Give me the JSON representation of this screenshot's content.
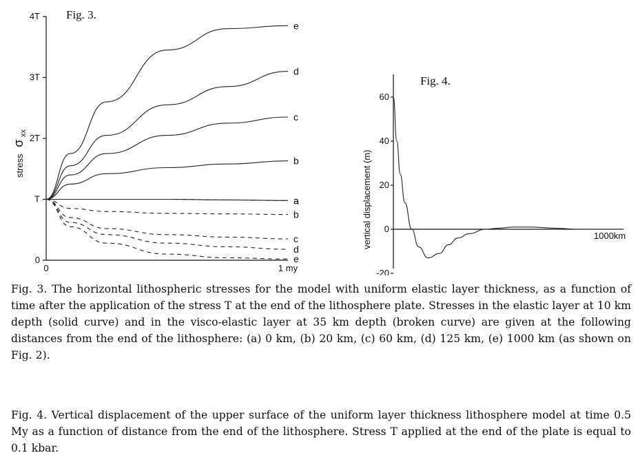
{
  "fig3": {
    "label": "Fig. 3.",
    "y_axis_label": "stress",
    "y_axis_symbol": "σ",
    "y_axis_subscript": "xx",
    "y_ticks": [
      "0",
      "T",
      "2T",
      "3T",
      "4T"
    ],
    "x_ticks": [
      "0",
      "1 my"
    ],
    "caption": "Fig. 3. The horizontal lithospheric stresses for the model with uniform elastic layer thickness, as a function of time after the application of the stress T at the end of the lithosphere plate. Stresses in the elastic layer at 10 km depth (solid curve) and in the visco-elastic layer at 35 km depth (broken curve) are given at the following distances from the end of the lithosphere: (a) 0 km, (b) 20 km, (c) 60 km, (d) 125 km, (e) 1000 km (as shown on Fig. 2)."
  },
  "fig4": {
    "label": "Fig. 4.",
    "y_axis_label": "vertical displacement (m)",
    "y_ticks": [
      "-20",
      "0",
      "20",
      "40",
      "60"
    ],
    "x_tick_end": "1000km",
    "caption": "Fig. 4. Vertical displacement of the upper surface of the uniform layer thickness lithosphere model at time 0.5 My as a function of distance from the end of the lithosphere. Stress T applied at the end of the plate is equal to 0.1 kbar."
  },
  "chart_data": [
    {
      "type": "line",
      "x_unit_note": "time after application of stress (my)",
      "xlim": [
        0,
        1
      ],
      "ylim": [
        0,
        4
      ],
      "x_ticks": [
        "0",
        "1 my"
      ],
      "y_ticks": [
        "0",
        "T",
        "2T",
        "3T",
        "4T"
      ],
      "grid": false,
      "series": [
        {
          "name": "a",
          "style": "solid",
          "x": [
            0,
            0.25,
            0.5,
            0.75,
            1
          ],
          "y": [
            1.0,
            1.0,
            1.0,
            0.99,
            0.98
          ]
        },
        {
          "name": "b",
          "style": "solid",
          "x": [
            0,
            0.1,
            0.25,
            0.5,
            0.75,
            1
          ],
          "y": [
            1.0,
            1.25,
            1.42,
            1.52,
            1.58,
            1.63
          ]
        },
        {
          "name": "c",
          "style": "solid",
          "x": [
            0,
            0.1,
            0.25,
            0.5,
            0.75,
            1
          ],
          "y": [
            1.0,
            1.4,
            1.75,
            2.05,
            2.25,
            2.35
          ]
        },
        {
          "name": "d",
          "style": "solid",
          "x": [
            0,
            0.1,
            0.25,
            0.5,
            0.75,
            1
          ],
          "y": [
            1.0,
            1.55,
            2.05,
            2.55,
            2.85,
            3.1
          ]
        },
        {
          "name": "e",
          "style": "solid",
          "x": [
            0,
            0.1,
            0.25,
            0.5,
            0.75,
            1
          ],
          "y": [
            1.0,
            1.75,
            2.6,
            3.45,
            3.8,
            3.85
          ]
        },
        {
          "name": "a",
          "style": "dashed",
          "x": [
            0,
            0.25,
            0.5,
            0.75,
            1
          ],
          "y": [
            1.0,
            1.0,
            1.0,
            0.99,
            0.98
          ]
        },
        {
          "name": "b",
          "style": "dashed",
          "x": [
            0,
            0.1,
            0.25,
            0.5,
            0.75,
            1
          ],
          "y": [
            1.0,
            0.85,
            0.8,
            0.77,
            0.76,
            0.75
          ]
        },
        {
          "name": "c",
          "style": "dashed",
          "x": [
            0,
            0.1,
            0.25,
            0.5,
            0.75,
            1
          ],
          "y": [
            1.0,
            0.7,
            0.52,
            0.42,
            0.38,
            0.35
          ]
        },
        {
          "name": "d",
          "style": "dashed",
          "x": [
            0,
            0.1,
            0.25,
            0.5,
            0.75,
            1
          ],
          "y": [
            1.0,
            0.62,
            0.42,
            0.28,
            0.22,
            0.18
          ]
        },
        {
          "name": "e",
          "style": "dashed",
          "x": [
            0,
            0.1,
            0.25,
            0.5,
            0.75,
            1
          ],
          "y": [
            1.0,
            0.55,
            0.28,
            0.1,
            0.04,
            0.02
          ]
        }
      ]
    },
    {
      "type": "line",
      "xlim": [
        0,
        1000
      ],
      "ylim": [
        -20,
        70
      ],
      "x_unit_note": "distance from the end of the lithosphere (km)",
      "y_ticks": [
        "-20",
        "0",
        "20",
        "40",
        "60"
      ],
      "x_tick_end": "1000km",
      "grid": false,
      "series": [
        {
          "x": [
            0,
            15,
            30,
            50,
            80,
            110,
            150,
            200,
            240,
            280,
            330,
            400,
            460,
            520,
            600,
            700,
            800,
            900,
            1000
          ],
          "y": [
            60,
            40,
            25,
            12,
            0,
            -8,
            -13,
            -11,
            -7,
            -4,
            -2,
            0,
            0.5,
            1,
            1,
            0.5,
            0,
            0,
            0
          ]
        }
      ]
    }
  ]
}
